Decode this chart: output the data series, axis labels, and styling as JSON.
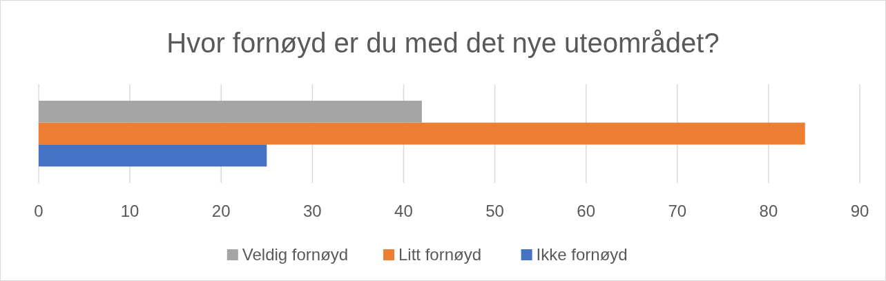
{
  "chart_data": {
    "type": "bar",
    "orientation": "horizontal",
    "title": "Hvor fornøyd er du med det nye uteområdet?",
    "categories": [
      null
    ],
    "series": [
      {
        "name": "Veldig fornøyd",
        "color": "#a5a5a5",
        "values": [
          42
        ]
      },
      {
        "name": "Litt fornøyd",
        "color": "#ed7d31",
        "values": [
          84
        ]
      },
      {
        "name": "Ikke fornøyd",
        "color": "#4472c4",
        "values": [
          25
        ]
      }
    ],
    "xlim": [
      0,
      90
    ],
    "xticks": [
      0,
      10,
      20,
      30,
      40,
      50,
      60,
      70,
      80,
      90
    ],
    "grid": "x",
    "legend": "bottom"
  }
}
